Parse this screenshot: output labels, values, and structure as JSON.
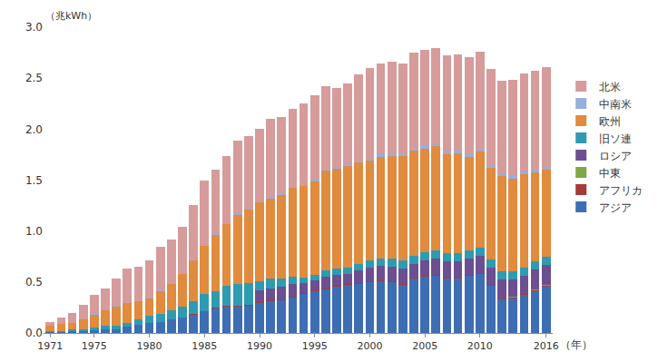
{
  "chart_data": {
    "type": "bar",
    "stacked": true,
    "grid": false,
    "legend": "right",
    "y_label": "（兆kWh）",
    "x_label": "（年）",
    "x": [
      1971,
      1972,
      1973,
      1974,
      1975,
      1976,
      1977,
      1978,
      1979,
      1980,
      1981,
      1982,
      1983,
      1984,
      1985,
      1986,
      1987,
      1988,
      1989,
      1990,
      1991,
      1992,
      1993,
      1994,
      1995,
      1996,
      1997,
      1998,
      1999,
      2000,
      2001,
      2002,
      2003,
      2004,
      2005,
      2006,
      2007,
      2008,
      2009,
      2010,
      2011,
      2012,
      2013,
      2014,
      2015,
      2016
    ],
    "xlim": [
      1970.4,
      2016.6
    ],
    "xticks": [
      1971,
      1975,
      1980,
      1985,
      1990,
      1995,
      2000,
      2005,
      2010,
      2016
    ],
    "ylim": [
      0,
      3
    ],
    "yticks": [
      {
        "value": 0,
        "label": "0.0"
      },
      0.5,
      {
        "value": 1,
        "label": "1.0"
      },
      1.5,
      {
        "value": 2,
        "label": "2.0"
      },
      2.5,
      {
        "value": 3,
        "label": "3.0"
      }
    ],
    "series": [
      {
        "name": "アジア",
        "color": "#3d6eb4",
        "values": [
          0.01,
          0.01,
          0.02,
          0.02,
          0.03,
          0.04,
          0.04,
          0.06,
          0.08,
          0.1,
          0.11,
          0.13,
          0.15,
          0.18,
          0.21,
          0.24,
          0.26,
          0.26,
          0.27,
          0.29,
          0.31,
          0.32,
          0.35,
          0.38,
          0.41,
          0.43,
          0.45,
          0.47,
          0.48,
          0.5,
          0.51,
          0.5,
          0.47,
          0.53,
          0.55,
          0.56,
          0.53,
          0.53,
          0.56,
          0.58,
          0.46,
          0.33,
          0.34,
          0.37,
          0.41,
          0.45
        ]
      },
      {
        "name": "アフリカ",
        "color": "#a53a36",
        "values": [
          0,
          0,
          0,
          0,
          0,
          0,
          0,
          0,
          0,
          0,
          0,
          0,
          0,
          0.005,
          0.005,
          0.01,
          0.01,
          0.01,
          0.01,
          0.01,
          0.01,
          0.01,
          0.01,
          0.01,
          0.01,
          0.01,
          0.01,
          0.01,
          0.01,
          0.01,
          0.01,
          0.01,
          0.01,
          0.01,
          0.01,
          0.01,
          0.01,
          0.01,
          0.01,
          0.01,
          0.01,
          0.01,
          0.01,
          0.01,
          0.01,
          0.015
        ]
      },
      {
        "name": "中東",
        "color": "#7fa844",
        "values": [
          0,
          0,
          0,
          0,
          0,
          0,
          0,
          0,
          0,
          0,
          0,
          0,
          0,
          0,
          0,
          0,
          0,
          0,
          0,
          0,
          0,
          0,
          0,
          0,
          0,
          0,
          0,
          0,
          0,
          0,
          0,
          0,
          0,
          0,
          0,
          0,
          0,
          0,
          0,
          0,
          0.001,
          0.001,
          0.004,
          0.004,
          0.003,
          0.006
        ]
      },
      {
        "name": "ロシア",
        "color": "#6b4f91",
        "values": [
          0,
          0,
          0,
          0,
          0,
          0,
          0,
          0,
          0,
          0,
          0,
          0,
          0,
          0,
          0,
          0,
          0,
          0,
          0,
          0.12,
          0.12,
          0.12,
          0.12,
          0.1,
          0.1,
          0.11,
          0.11,
          0.1,
          0.12,
          0.13,
          0.14,
          0.14,
          0.15,
          0.14,
          0.15,
          0.16,
          0.16,
          0.16,
          0.16,
          0.17,
          0.17,
          0.18,
          0.17,
          0.18,
          0.2,
          0.2
        ]
      },
      {
        "name": "旧ソ連",
        "color": "#2f9bb0",
        "values": [
          0.01,
          0.01,
          0.02,
          0.02,
          0.02,
          0.03,
          0.03,
          0.04,
          0.05,
          0.07,
          0.08,
          0.09,
          0.11,
          0.13,
          0.17,
          0.16,
          0.19,
          0.21,
          0.21,
          0.09,
          0.09,
          0.08,
          0.07,
          0.05,
          0.05,
          0.06,
          0.06,
          0.06,
          0.07,
          0.07,
          0.07,
          0.08,
          0.08,
          0.08,
          0.08,
          0.08,
          0.08,
          0.08,
          0.08,
          0.08,
          0.08,
          0.08,
          0.08,
          0.08,
          0.08,
          0.08
        ]
      },
      {
        "name": "欧州",
        "color": "#e08b3d",
        "values": [
          0.05,
          0.07,
          0.06,
          0.09,
          0.13,
          0.15,
          0.19,
          0.19,
          0.18,
          0.17,
          0.22,
          0.26,
          0.32,
          0.4,
          0.47,
          0.55,
          0.61,
          0.68,
          0.72,
          0.77,
          0.79,
          0.82,
          0.87,
          0.9,
          0.92,
          0.98,
          0.98,
          1.0,
          0.99,
          0.98,
          1.0,
          1.01,
          1.03,
          1.03,
          1.02,
          1.02,
          0.97,
          0.98,
          0.92,
          0.94,
          0.9,
          0.94,
          0.91,
          0.91,
          0.87,
          0.85
        ]
      },
      {
        "name": "中南米",
        "color": "#96b0dc",
        "values": [
          0,
          0,
          0,
          0.003,
          0.003,
          0.003,
          0.003,
          0.003,
          0.003,
          0.003,
          0.005,
          0.005,
          0.005,
          0.01,
          0.01,
          0.01,
          0.01,
          0.01,
          0.01,
          0.012,
          0.012,
          0.012,
          0.012,
          0.012,
          0.015,
          0.015,
          0.015,
          0.015,
          0.015,
          0.02,
          0.02,
          0.02,
          0.02,
          0.02,
          0.025,
          0.025,
          0.025,
          0.025,
          0.025,
          0.03,
          0.03,
          0.03,
          0.03,
          0.03,
          0.03,
          0.03
        ]
      },
      {
        "name": "北米",
        "color": "#d69b9b",
        "values": [
          0.04,
          0.06,
          0.1,
          0.14,
          0.19,
          0.21,
          0.27,
          0.34,
          0.34,
          0.37,
          0.43,
          0.43,
          0.46,
          0.53,
          0.63,
          0.63,
          0.66,
          0.72,
          0.71,
          0.71,
          0.77,
          0.76,
          0.77,
          0.8,
          0.83,
          0.82,
          0.78,
          0.79,
          0.85,
          0.89,
          0.89,
          0.9,
          0.88,
          0.94,
          0.94,
          0.94,
          0.95,
          0.95,
          0.95,
          0.95,
          0.94,
          0.9,
          0.94,
          0.96,
          0.97,
          0.98
        ]
      }
    ]
  }
}
